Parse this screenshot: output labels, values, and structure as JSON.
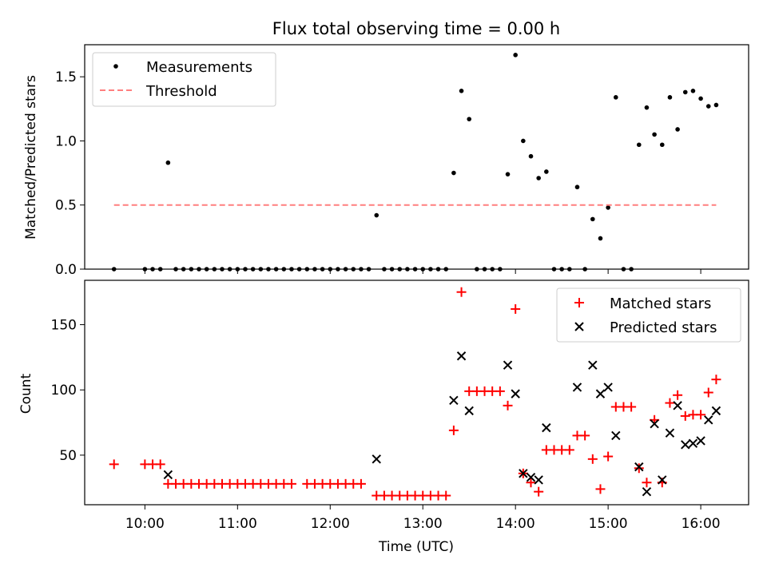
{
  "chart_data": [
    {
      "type": "scatter",
      "title": "Flux total observing time = 0.00 h",
      "xlabel": "",
      "ylabel": "Matched/Predicted stars",
      "xlim": [
        "09:21",
        "16:31"
      ],
      "ylim": [
        0,
        1.75
      ],
      "yticks": [
        0.0,
        0.5,
        1.0,
        1.5
      ],
      "ytick_labels": [
        "0.0",
        "0.5",
        "1.0",
        "1.5"
      ],
      "legend": {
        "placement": "upper left",
        "entries": [
          "Measurements",
          "Threshold"
        ]
      },
      "series": [
        {
          "name": "Measurements",
          "marker": "dot",
          "color": "#000000",
          "points": [
            [
              "09:40",
              0
            ],
            [
              "10:00",
              0
            ],
            [
              "10:05",
              0
            ],
            [
              "10:10",
              0
            ],
            [
              "10:15",
              0.83
            ],
            [
              "10:20",
              0
            ],
            [
              "10:25",
              0
            ],
            [
              "10:30",
              0
            ],
            [
              "10:35",
              0
            ],
            [
              "10:40",
              0
            ],
            [
              "10:45",
              0
            ],
            [
              "10:50",
              0
            ],
            [
              "10:55",
              0
            ],
            [
              "11:00",
              0
            ],
            [
              "11:05",
              0
            ],
            [
              "11:10",
              0
            ],
            [
              "11:15",
              0
            ],
            [
              "11:20",
              0
            ],
            [
              "11:25",
              0
            ],
            [
              "11:30",
              0
            ],
            [
              "11:35",
              0
            ],
            [
              "11:40",
              0
            ],
            [
              "11:45",
              0
            ],
            [
              "11:50",
              0
            ],
            [
              "11:55",
              0
            ],
            [
              "12:00",
              0
            ],
            [
              "12:05",
              0
            ],
            [
              "12:10",
              0
            ],
            [
              "12:15",
              0
            ],
            [
              "12:20",
              0
            ],
            [
              "12:25",
              0
            ],
            [
              "12:30",
              0.42
            ],
            [
              "12:35",
              0
            ],
            [
              "12:40",
              0
            ],
            [
              "12:45",
              0
            ],
            [
              "12:50",
              0
            ],
            [
              "12:55",
              0
            ],
            [
              "13:00",
              0
            ],
            [
              "13:05",
              0
            ],
            [
              "13:10",
              0
            ],
            [
              "13:15",
              0
            ],
            [
              "13:20",
              0.75
            ],
            [
              "13:25",
              1.39
            ],
            [
              "13:30",
              1.17
            ],
            [
              "13:35",
              0
            ],
            [
              "13:40",
              0
            ],
            [
              "13:45",
              0
            ],
            [
              "13:50",
              0
            ],
            [
              "13:55",
              0.74
            ],
            [
              "14:00",
              1.67
            ],
            [
              "14:05",
              1.0
            ],
            [
              "14:10",
              0.88
            ],
            [
              "14:15",
              0.71
            ],
            [
              "14:20",
              0.76
            ],
            [
              "14:25",
              0
            ],
            [
              "14:30",
              0
            ],
            [
              "14:35",
              0
            ],
            [
              "14:40",
              0.64
            ],
            [
              "14:45",
              0
            ],
            [
              "14:50",
              0.39
            ],
            [
              "14:55",
              0.24
            ],
            [
              "15:00",
              0.48
            ],
            [
              "15:05",
              1.34
            ],
            [
              "15:10",
              0
            ],
            [
              "15:15",
              0
            ],
            [
              "15:20",
              0.97
            ],
            [
              "15:25",
              1.26
            ],
            [
              "15:30",
              1.05
            ],
            [
              "15:35",
              0.97
            ],
            [
              "15:40",
              1.34
            ],
            [
              "15:45",
              1.09
            ],
            [
              "15:50",
              1.38
            ],
            [
              "15:55",
              1.39
            ],
            [
              "16:00",
              1.33
            ],
            [
              "16:05",
              1.27
            ],
            [
              "16:10",
              1.28
            ]
          ]
        },
        {
          "name": "Threshold",
          "marker": "dashed-line",
          "color": "#ff7f7f",
          "points": [
            [
              "09:40",
              0.5
            ],
            [
              "16:10",
              0.5
            ]
          ]
        }
      ]
    },
    {
      "type": "scatter",
      "title": "",
      "xlabel": "Time (UTC)",
      "ylabel": "Count",
      "xlim": [
        "09:21",
        "16:31"
      ],
      "ylim": [
        12,
        184
      ],
      "xticks": [
        "10:00",
        "11:00",
        "12:00",
        "13:00",
        "14:00",
        "15:00",
        "16:00"
      ],
      "yticks": [
        50,
        100,
        150
      ],
      "ytick_labels": [
        "50",
        "100",
        "150"
      ],
      "legend": {
        "placement": "upper right",
        "entries": [
          "Matched stars",
          "Predicted stars"
        ]
      },
      "series": [
        {
          "name": "Matched stars",
          "marker": "plus",
          "color": "#ff0000",
          "points": [
            [
              "09:40",
              43
            ],
            [
              "10:00",
              43
            ],
            [
              "10:05",
              43
            ],
            [
              "10:10",
              43
            ],
            [
              "10:15",
              28
            ],
            [
              "10:20",
              28
            ],
            [
              "10:25",
              28
            ],
            [
              "10:30",
              28
            ],
            [
              "10:35",
              28
            ],
            [
              "10:40",
              28
            ],
            [
              "10:45",
              28
            ],
            [
              "10:50",
              28
            ],
            [
              "10:55",
              28
            ],
            [
              "11:00",
              28
            ],
            [
              "11:05",
              28
            ],
            [
              "11:10",
              28
            ],
            [
              "11:15",
              28
            ],
            [
              "11:20",
              28
            ],
            [
              "11:25",
              28
            ],
            [
              "11:30",
              28
            ],
            [
              "11:35",
              28
            ],
            [
              "11:45",
              28
            ],
            [
              "11:50",
              28
            ],
            [
              "11:55",
              28
            ],
            [
              "12:00",
              28
            ],
            [
              "12:05",
              28
            ],
            [
              "12:10",
              28
            ],
            [
              "12:15",
              28
            ],
            [
              "12:20",
              28
            ],
            [
              "12:30",
              19
            ],
            [
              "12:35",
              19
            ],
            [
              "12:40",
              19
            ],
            [
              "12:45",
              19
            ],
            [
              "12:50",
              19
            ],
            [
              "12:55",
              19
            ],
            [
              "13:00",
              19
            ],
            [
              "13:05",
              19
            ],
            [
              "13:10",
              19
            ],
            [
              "13:15",
              19
            ],
            [
              "13:20",
              69
            ],
            [
              "13:25",
              175
            ],
            [
              "13:30",
              99
            ],
            [
              "13:35",
              99
            ],
            [
              "13:40",
              99
            ],
            [
              "13:45",
              99
            ],
            [
              "13:50",
              99
            ],
            [
              "13:55",
              88
            ],
            [
              "14:00",
              162
            ],
            [
              "14:05",
              36
            ],
            [
              "14:10",
              29
            ],
            [
              "14:15",
              22
            ],
            [
              "14:20",
              54
            ],
            [
              "14:25",
              54
            ],
            [
              "14:30",
              54
            ],
            [
              "14:35",
              54
            ],
            [
              "14:40",
              65
            ],
            [
              "14:45",
              65
            ],
            [
              "14:50",
              47
            ],
            [
              "14:55",
              24
            ],
            [
              "15:00",
              49
            ],
            [
              "15:05",
              87
            ],
            [
              "15:10",
              87
            ],
            [
              "15:15",
              87
            ],
            [
              "15:20",
              40
            ],
            [
              "15:25",
              29
            ],
            [
              "15:30",
              77
            ],
            [
              "15:35",
              29
            ],
            [
              "15:40",
              90
            ],
            [
              "15:45",
              96
            ],
            [
              "15:50",
              80
            ],
            [
              "15:55",
              81
            ],
            [
              "16:00",
              81
            ],
            [
              "16:05",
              98
            ],
            [
              "16:10",
              108
            ]
          ]
        },
        {
          "name": "Predicted stars",
          "marker": "x",
          "color": "#000000",
          "points": [
            [
              "10:15",
              35
            ],
            [
              "12:30",
              47
            ],
            [
              "13:20",
              92
            ],
            [
              "13:25",
              126
            ],
            [
              "13:30",
              84
            ],
            [
              "13:55",
              119
            ],
            [
              "14:00",
              97
            ],
            [
              "14:05",
              36
            ],
            [
              "14:10",
              33
            ],
            [
              "14:15",
              31
            ],
            [
              "14:20",
              71
            ],
            [
              "14:40",
              102
            ],
            [
              "14:50",
              119
            ],
            [
              "14:55",
              97
            ],
            [
              "15:00",
              102
            ],
            [
              "15:05",
              65
            ],
            [
              "15:20",
              41
            ],
            [
              "15:25",
              22
            ],
            [
              "15:30",
              74
            ],
            [
              "15:35",
              31
            ],
            [
              "15:40",
              67
            ],
            [
              "15:45",
              88
            ],
            [
              "15:50",
              58
            ],
            [
              "15:55",
              59
            ],
            [
              "16:00",
              61
            ],
            [
              "16:05",
              77
            ],
            [
              "16:10",
              84
            ]
          ]
        }
      ]
    }
  ]
}
